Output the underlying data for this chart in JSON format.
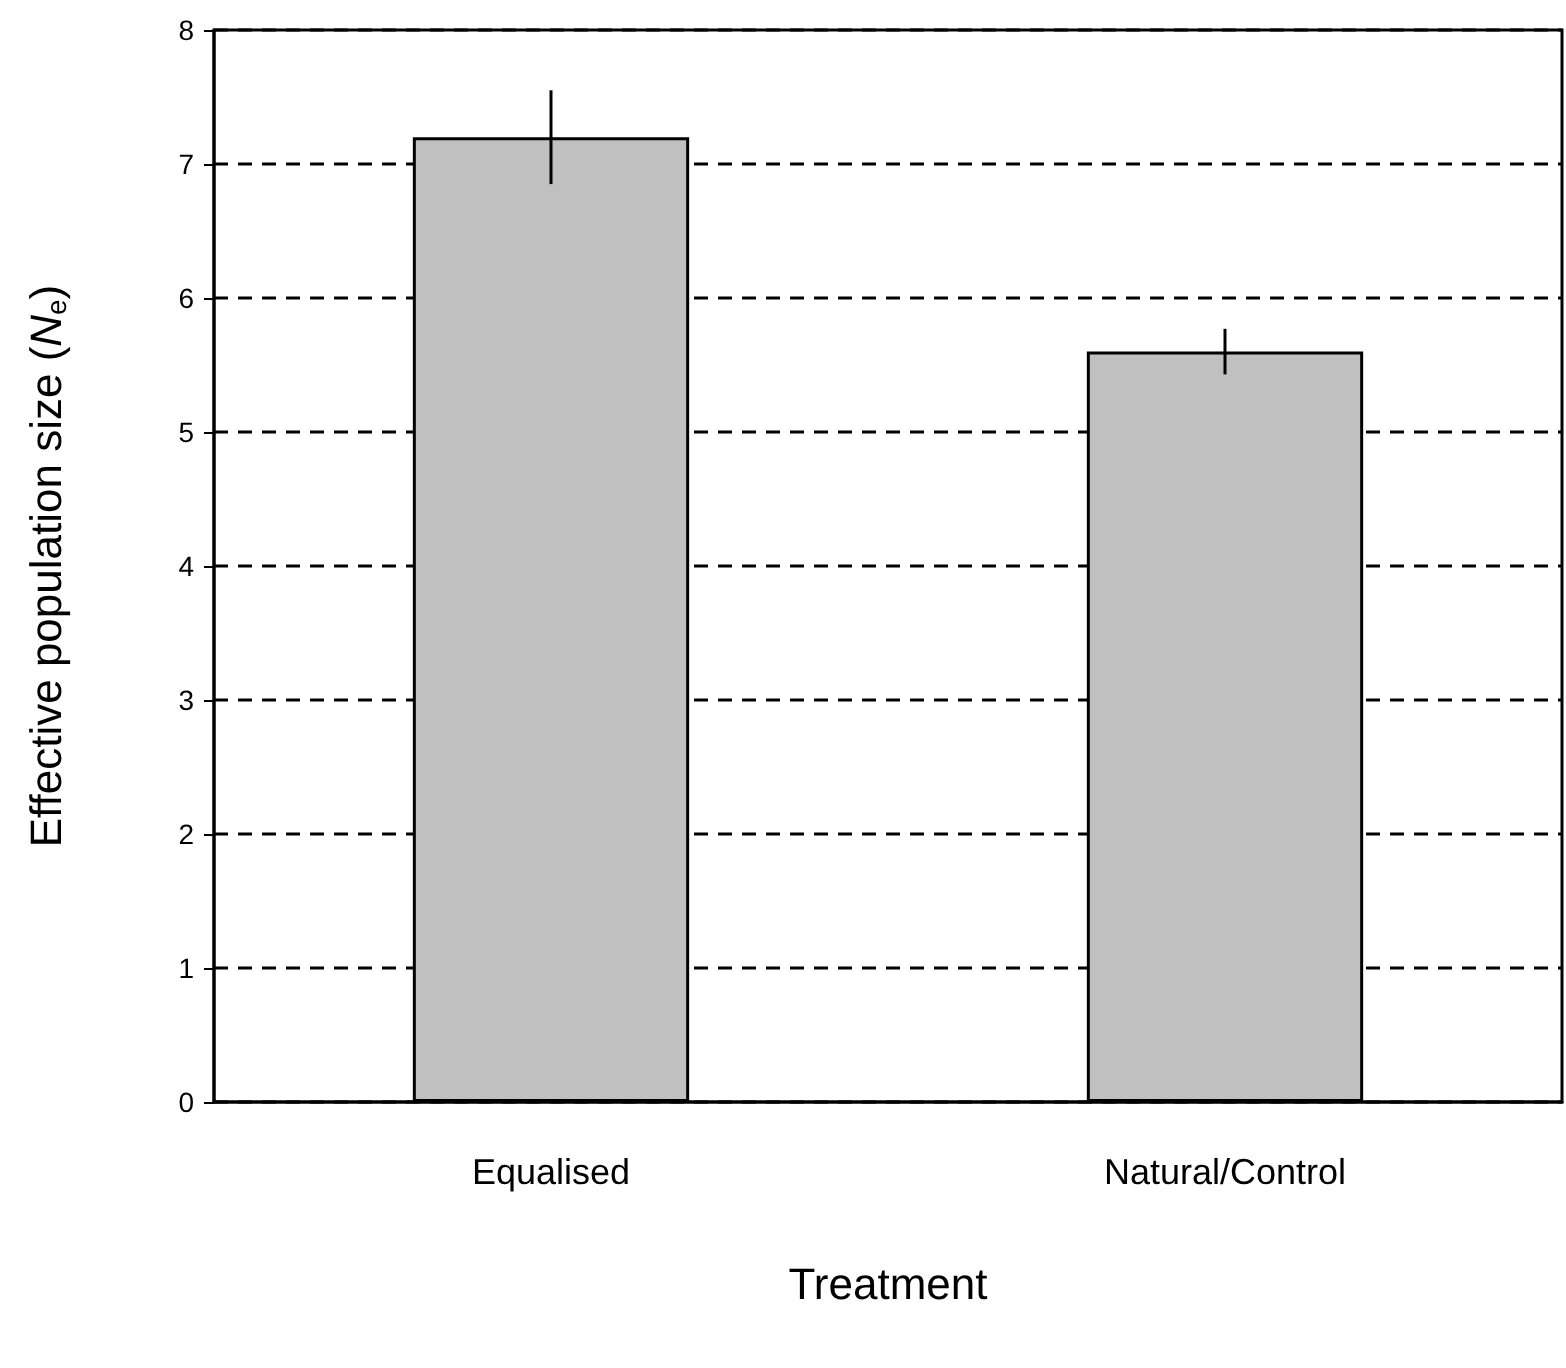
{
  "chart_data": {
    "type": "bar",
    "xlabel": "Treatment",
    "ylabel": "Effective population size (N$_{e}$)",
    "categories": [
      "Equalised",
      "Natural/Control"
    ],
    "values": [
      7.2,
      5.6
    ],
    "errors": [
      0.35,
      0.17
    ],
    "color": "#c0c0c0",
    "ylim": [
      0,
      8
    ],
    "yticks": [
      0,
      1,
      2,
      3,
      4,
      5,
      6,
      7,
      8
    ],
    "grid": "y"
  }
}
